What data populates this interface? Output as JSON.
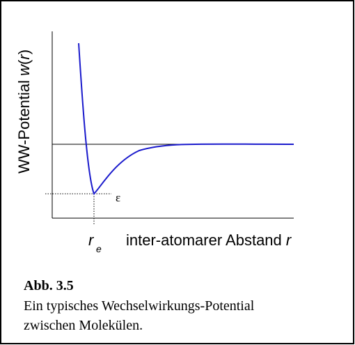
{
  "y_label": [
    "WW-Potential ",
    "w",
    "(",
    "r",
    ")"
  ],
  "x_label": [
    "inter-atomarer Abstand ",
    "r"
  ],
  "minimum_position": {
    "base": "r",
    "sub": "e"
  },
  "well_depth": "ε",
  "caption": {
    "label": "Abb. 3.5",
    "lines": [
      "Ein typisches Wechselwirkungs-Potential",
      "zwischen Molekülen."
    ]
  }
}
